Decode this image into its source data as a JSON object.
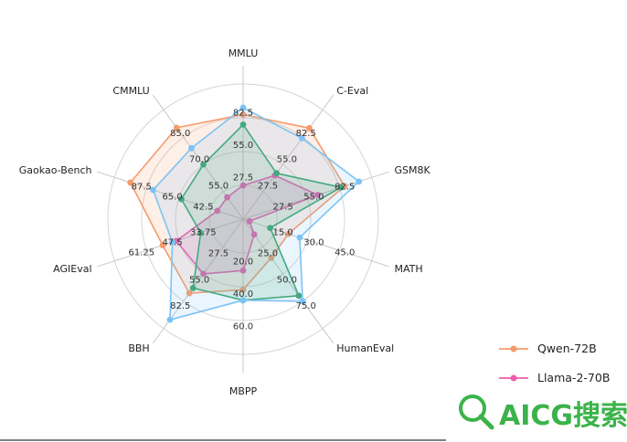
{
  "chart_data": {
    "type": "radar",
    "axes": [
      "MMLU",
      "C-Eval",
      "GSM8K",
      "MATH",
      "HumanEval",
      "MBPP",
      "BBH",
      "AGIEval",
      "Gaokao-Bench",
      "CMMLU"
    ],
    "axis_ticks": [
      [
        "27.5",
        "55.0",
        "82.5"
      ],
      [
        "27.5",
        "55.0",
        "82.5"
      ],
      [
        "27.5",
        "55.0",
        "82.5"
      ],
      [
        "15.0",
        "30.0",
        "45.0"
      ],
      [
        "25.0",
        "50.0",
        "75.0"
      ],
      [
        "20.0",
        "40.0",
        "60.0"
      ],
      [
        "27.5",
        "55.0",
        "82.5"
      ],
      [
        "33.75",
        "47.5",
        "61.25"
      ],
      [
        "42.5",
        "65.0",
        "87.5"
      ],
      [
        "55.0",
        "70.0",
        "85.0"
      ]
    ],
    "series": [
      {
        "name": "Qwen-72B",
        "color": "#f79a6b",
        "values": [
          77.4,
          83.3,
          78.9,
          35.2,
          35.4,
          52.2,
          67.7,
          62.5,
          87.6,
          83.6
        ]
      },
      {
        "name": "Llama-2-70B",
        "color": "#ef5bad",
        "values": [
          25.0,
          40.0,
          58.0,
          5.0,
          14.0,
          38.0,
          50.0,
          52.0,
          20.0,
          20.0
        ]
      },
      {
        "name": "",
        "color": "#3aa569",
        "values": [
          70.0,
          42.0,
          76.0,
          21.0,
          70.0,
          60.0,
          63.0,
          33.0,
          48.0,
          50.0
        ]
      },
      {
        "name": "",
        "color": "#7cc3f5",
        "values": [
          82.5,
          74.0,
          90.0,
          44.0,
          75.0,
          60.0,
          92.0,
          55.0,
          70.0,
          65.0
        ]
      }
    ],
    "legend_position": "bottom-right"
  },
  "watermark": {
    "text": "AICG搜索",
    "color": "#3bb34a"
  }
}
